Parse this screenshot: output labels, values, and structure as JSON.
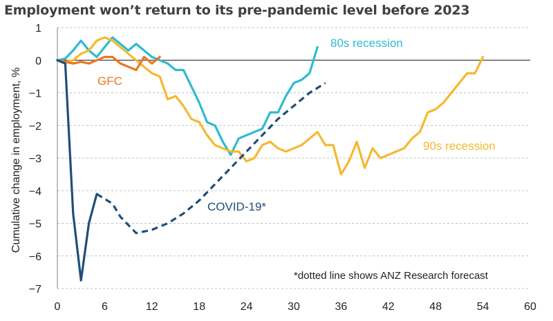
{
  "chart_data": {
    "type": "line",
    "title": "Employment won’t return to its pre-pandemic level before 2023",
    "ylabel": "Cumulative change in employment, %",
    "xlabel": "",
    "xlim": [
      0,
      60
    ],
    "ylim": [
      -7,
      1
    ],
    "xticks": [
      0,
      6,
      12,
      18,
      24,
      30,
      36,
      42,
      48,
      54,
      60
    ],
    "yticks": [
      1,
      0,
      -1,
      -2,
      -3,
      -4,
      -5,
      -6,
      -7
    ],
    "grid": "horizontal dashed",
    "note": "*dotted line shows ANZ Research forecast",
    "series": [
      {
        "name": "80s recession",
        "color": "#2cbbd2",
        "style": "solid",
        "x": [
          0,
          1,
          2,
          3,
          4,
          5,
          6,
          7,
          8,
          9,
          10,
          11,
          12,
          13,
          14,
          15,
          16,
          17,
          18,
          19,
          20,
          21,
          22,
          23,
          24,
          25,
          26,
          27,
          28,
          29,
          30,
          31,
          32,
          33
        ],
        "y": [
          0,
          0.05,
          0.3,
          0.6,
          0.3,
          0.1,
          0.4,
          0.7,
          0.5,
          0.3,
          0.5,
          0.3,
          0.1,
          0,
          -0.1,
          -0.3,
          -0.3,
          -0.8,
          -1.3,
          -1.9,
          -2.0,
          -2.5,
          -2.9,
          -2.4,
          -2.3,
          -2.2,
          -2.1,
          -1.6,
          -1.6,
          -1.1,
          -0.7,
          -0.6,
          -0.4,
          0.4
        ]
      },
      {
        "name": "90s recession",
        "color": "#f5b82e",
        "style": "solid",
        "x": [
          0,
          1,
          2,
          3,
          4,
          5,
          6,
          7,
          8,
          9,
          10,
          11,
          12,
          13,
          14,
          15,
          16,
          17,
          18,
          19,
          20,
          21,
          22,
          23,
          24,
          25,
          26,
          27,
          28,
          29,
          30,
          31,
          32,
          33,
          34,
          35,
          36,
          37,
          38,
          39,
          40,
          41,
          42,
          43,
          44,
          45,
          46,
          47,
          48,
          49,
          50,
          51,
          52,
          53,
          54
        ],
        "y": [
          0,
          -0.05,
          0,
          0.2,
          0.3,
          0.6,
          0.7,
          0.6,
          0.4,
          0.2,
          0,
          -0.2,
          -0.4,
          -0.5,
          -1.2,
          -1.1,
          -1.4,
          -1.8,
          -1.9,
          -2.3,
          -2.6,
          -2.7,
          -2.8,
          -2.8,
          -3.1,
          -3.0,
          -2.6,
          -2.5,
          -2.7,
          -2.8,
          -2.7,
          -2.6,
          -2.4,
          -2.2,
          -2.6,
          -2.6,
          -3.5,
          -3.1,
          -2.5,
          -3.3,
          -2.7,
          -3.0,
          -2.9,
          -2.8,
          -2.7,
          -2.4,
          -2.2,
          -1.6,
          -1.5,
          -1.3,
          -1.0,
          -0.7,
          -0.4,
          -0.4,
          0.1
        ]
      },
      {
        "name": "GFC",
        "color": "#e87722",
        "style": "solid",
        "x": [
          0,
          1,
          2,
          3,
          4,
          5,
          6,
          7,
          8,
          9,
          10,
          11,
          12,
          13
        ],
        "y": [
          0,
          -0.05,
          -0.1,
          -0.05,
          -0.1,
          0,
          0.1,
          0.1,
          -0.1,
          -0.2,
          -0.3,
          0.1,
          -0.1,
          0.1
        ]
      },
      {
        "name": "COVID-19*",
        "color": "#1f4e79",
        "style": "solid",
        "x": [
          0,
          1,
          2,
          3,
          4,
          5
        ],
        "y": [
          0,
          -0.1,
          -4.7,
          -6.75,
          -5.0,
          -4.1
        ]
      },
      {
        "name": "COVID-19 forecast",
        "color": "#1f4e79",
        "style": "dashed",
        "x": [
          5,
          7,
          8,
          10,
          12,
          14,
          16,
          18,
          20,
          22,
          24,
          26,
          28,
          30,
          32,
          34
        ],
        "y": [
          -4.1,
          -4.4,
          -4.8,
          -5.3,
          -5.2,
          -5.0,
          -4.7,
          -4.3,
          -3.8,
          -3.3,
          -2.8,
          -2.3,
          -1.8,
          -1.4,
          -1.0,
          -0.7
        ]
      }
    ],
    "labels": {
      "s80": "80s recession",
      "s90": "90s recession",
      "gfc": "GFC",
      "covid": "COVID-19*"
    }
  }
}
